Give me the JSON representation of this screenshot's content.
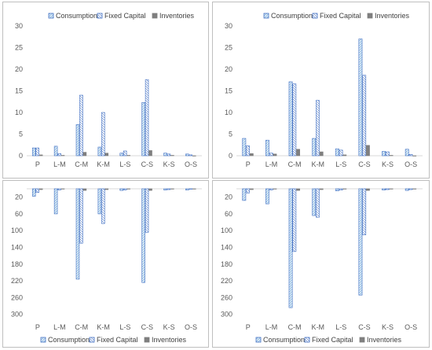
{
  "colors": {
    "consumption": "#4472c4",
    "consumption_fill": "#9dc3e6",
    "fixed_capital": "#4472c4",
    "inventories": "#7f7f7f",
    "axis": "#d9d9d9",
    "text": "#595959"
  },
  "legend_labels": [
    "Consumption",
    "Fixed Capital",
    "Inventories"
  ],
  "chart_data": [
    {
      "type": "bar",
      "position": "top-left",
      "categories": [
        "P",
        "L-M",
        "C-M",
        "K-M",
        "L-S",
        "C-S",
        "K-S",
        "O-S"
      ],
      "series": [
        {
          "name": "Consumption",
          "values": [
            1.8,
            2.2,
            7.2,
            2.0,
            0.6,
            12.3,
            0.6,
            0.4
          ]
        },
        {
          "name": "Fixed Capital",
          "values": [
            1.8,
            0.5,
            14.0,
            10.0,
            1.1,
            17.6,
            0.4,
            0.2
          ]
        },
        {
          "name": "Inventories",
          "values": [
            0.2,
            0.1,
            0.8,
            0.6,
            0.1,
            1.2,
            0.1,
            0.0
          ]
        }
      ],
      "yticks": [
        "0",
        "5",
        "10",
        "15",
        "20",
        "25",
        "30"
      ],
      "ylim": [
        0,
        30
      ],
      "legend": "top"
    },
    {
      "type": "bar",
      "position": "top-right",
      "categories": [
        "P",
        "L-M",
        "C-M",
        "K-M",
        "L-S",
        "C-S",
        "K-S",
        "O-S"
      ],
      "series": [
        {
          "name": "Consumption",
          "values": [
            4.0,
            3.6,
            17.1,
            4.0,
            1.6,
            27.0,
            1.0,
            1.5
          ]
        },
        {
          "name": "Fixed Capital",
          "values": [
            2.3,
            0.6,
            16.6,
            12.8,
            1.3,
            18.6,
            0.9,
            0.3
          ]
        },
        {
          "name": "Inventories",
          "values": [
            0.5,
            0.4,
            1.5,
            0.9,
            0.2,
            2.4,
            0.1,
            0.0
          ]
        }
      ],
      "yticks": [
        "0",
        "5",
        "10",
        "15",
        "20",
        "25",
        "30"
      ],
      "ylim": [
        0,
        30
      ],
      "legend": "top"
    },
    {
      "type": "bar",
      "position": "bottom-left",
      "categories": [
        "P",
        "L-M",
        "C-M",
        "K-M",
        "L-S",
        "C-S",
        "K-S",
        "O-S"
      ],
      "series": [
        {
          "name": "Consumption",
          "values": [
            18,
            60,
            216,
            60,
            4,
            224,
            3,
            3
          ]
        },
        {
          "name": "Fixed Capital",
          "values": [
            9,
            3,
            130,
            83,
            3,
            104,
            2,
            1
          ]
        },
        {
          "name": "Inventories",
          "values": [
            2,
            0,
            4,
            2,
            0,
            4,
            0,
            0
          ]
        }
      ],
      "yticks": [
        "20",
        "60",
        "100",
        "140",
        "180",
        "220",
        "260",
        "300"
      ],
      "ylim": [
        0,
        310
      ],
      "inverted": true,
      "legend": "bottom"
    },
    {
      "type": "bar",
      "position": "bottom-right",
      "categories": [
        "P",
        "L-M",
        "C-M",
        "K-M",
        "L-S",
        "C-S",
        "K-S",
        "O-S"
      ],
      "series": [
        {
          "name": "Consumption",
          "values": [
            28,
            36,
            284,
            64,
            5,
            254,
            3,
            4
          ]
        },
        {
          "name": "Fixed Capital",
          "values": [
            10,
            3,
            150,
            68,
            3,
            110,
            2,
            2
          ]
        },
        {
          "name": "Inventories",
          "values": [
            2,
            0,
            4,
            2,
            0,
            4,
            0,
            0
          ]
        }
      ],
      "yticks": [
        "20",
        "60",
        "100",
        "140",
        "180",
        "220",
        "260",
        "300"
      ],
      "ylim": [
        0,
        310
      ],
      "inverted": true,
      "legend": "bottom"
    }
  ]
}
